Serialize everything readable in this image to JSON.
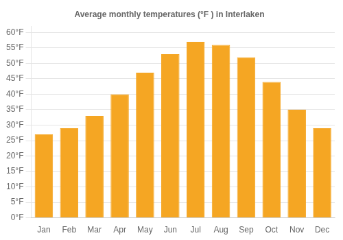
{
  "chart_data": {
    "type": "bar",
    "title": "Average monthly temperatures (°F ) in Interlaken",
    "categories": [
      "Jan",
      "Feb",
      "Mar",
      "Apr",
      "May",
      "Jun",
      "Jul",
      "Aug",
      "Sep",
      "Oct",
      "Nov",
      "Dec"
    ],
    "values": [
      27,
      29,
      33,
      40,
      47,
      53,
      57,
      56,
      52,
      44,
      35,
      29
    ],
    "color": "#F5A623",
    "ylim": [
      0,
      62
    ],
    "yticks": [
      {
        "value": 0,
        "label": "0°F"
      },
      {
        "value": 5,
        "label": "5°F"
      },
      {
        "value": 10,
        "label": "10°F"
      },
      {
        "value": 15,
        "label": "15°F"
      },
      {
        "value": 20,
        "label": "20°F"
      },
      {
        "value": 25,
        "label": "25°F"
      },
      {
        "value": 30,
        "label": "30°F"
      },
      {
        "value": 35,
        "label": "35°F"
      },
      {
        "value": 40,
        "label": "40°F"
      },
      {
        "value": 45,
        "label": "45°F"
      },
      {
        "value": 50,
        "label": "50°F"
      },
      {
        "value": 55,
        "label": "55°F"
      },
      {
        "value": 60,
        "label": "60°F"
      }
    ],
    "grid": true
  }
}
